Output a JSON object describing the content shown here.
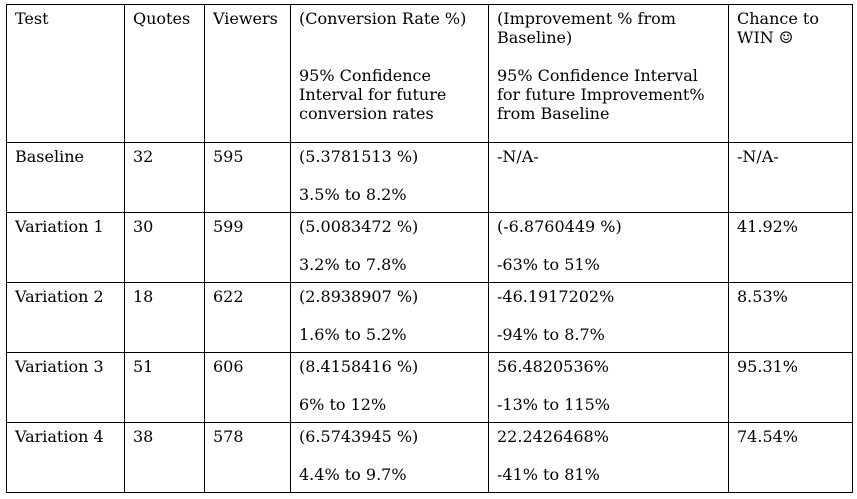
{
  "headers": {
    "test": "Test",
    "quotes": "Quotes",
    "viewers": "Viewers",
    "conversion": {
      "line1": "(Conversion Rate %)",
      "sub1": "95% Confidence",
      "sub2": "Interval for future",
      "sub3": "conversion rates"
    },
    "improvement": {
      "line1": "(Improvement % from",
      "line2": "Baseline)",
      "sub1": "95% Confidence Interval",
      "sub2": "for future Improvement%",
      "sub3": "from Baseline"
    },
    "chance": {
      "line1": "Chance to",
      "line2": "WIN ☺"
    }
  },
  "rows": [
    {
      "test": "Baseline",
      "quotes": "32",
      "viewers": "595",
      "conversion_rate": "(5.3781513 %)",
      "conversion_ci": "3.5% to 8.2%",
      "improvement": "-N/A-",
      "improvement_ci": "",
      "chance": "-N/A-"
    },
    {
      "test": "Variation 1",
      "quotes": "30",
      "viewers": "599",
      "conversion_rate": "(5.0083472 %)",
      "conversion_ci": "3.2% to 7.8%",
      "improvement": "(-6.8760449 %)",
      "improvement_ci": "-63% to 51%",
      "chance": "41.92%"
    },
    {
      "test": "Variation 2",
      "quotes": "18",
      "viewers": "622",
      "conversion_rate": "(2.8938907 %)",
      "conversion_ci": "1.6% to 5.2%",
      "improvement": "-46.1917202%",
      "improvement_ci": "-94% to 8.7%",
      "chance": "8.53%"
    },
    {
      "test": "Variation 3",
      "quotes": "51",
      "viewers": "606",
      "conversion_rate": "(8.4158416 %)",
      "conversion_ci": "6% to 12%",
      "improvement": "56.4820536%",
      "improvement_ci": "-13% to 115%",
      "chance": "95.31%"
    },
    {
      "test": "Variation 4",
      "quotes": "38",
      "viewers": "578",
      "conversion_rate": "(6.5743945 %)",
      "conversion_ci": "4.4% to 9.7%",
      "improvement": "22.2426468%",
      "improvement_ci": "-41% to 81%",
      "chance": "74.54%"
    }
  ]
}
